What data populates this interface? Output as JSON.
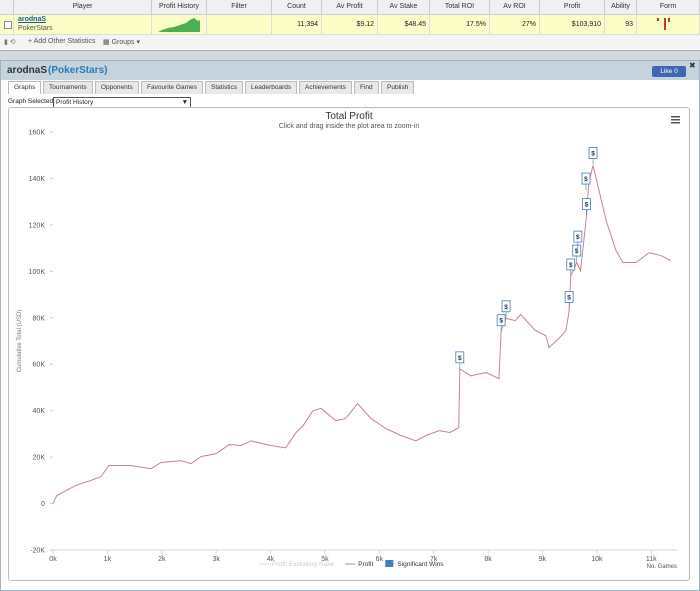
{
  "table": {
    "columns": [
      "Player",
      "Profit History",
      "Filter",
      "Count",
      "Av Profit",
      "Av Stake",
      "Total ROI",
      "Av ROI",
      "Profit",
      "Ability",
      "Form"
    ],
    "row": {
      "player": "arodnaS",
      "site": "PokerStars",
      "cells": [
        "11,394",
        "$9.12",
        "$48.45",
        "17.5%",
        "27%",
        "$103,910",
        "93"
      ]
    }
  },
  "toolbar": {
    "add_stats": "Add Other Statistics",
    "groups": "Groups"
  },
  "panel": {
    "name": "arodnaS",
    "site": "(PokerStars)",
    "like": "Like",
    "like_count": "0",
    "tabs": [
      "Graphs",
      "Tournaments",
      "Opponents",
      "Favourite Games",
      "Statistics",
      "Leaderboards",
      "Achievements",
      "Find",
      "Publish"
    ],
    "graph_selected_label": "Graph Selected:",
    "graph_selected_value": "Profit History"
  },
  "chart_data": {
    "type": "line",
    "title": "Total Profit",
    "subtitle": "Click and drag inside the plot area to zoom-in",
    "y_label": "Cumulative Total (USD)",
    "x_label": "No. Games",
    "xlim": [
      0,
      11400
    ],
    "ylim": [
      -20000,
      160000
    ],
    "xticks": [
      {
        "value": 0,
        "label": "0k"
      },
      {
        "value": 1000,
        "label": "1k"
      },
      {
        "value": 2000,
        "label": "2k"
      },
      {
        "value": 3000,
        "label": "3k"
      },
      {
        "value": 4000,
        "label": "4k"
      },
      {
        "value": 5000,
        "label": "5k"
      },
      {
        "value": 6000,
        "label": "6k"
      },
      {
        "value": 7000,
        "label": "7k"
      },
      {
        "value": 8000,
        "label": "8k"
      },
      {
        "value": 9000,
        "label": "9k"
      },
      {
        "value": 10000,
        "label": "10k"
      },
      {
        "value": 11000,
        "label": "11k"
      }
    ],
    "yticks": [
      {
        "value": -20000,
        "label": "-20K"
      },
      0,
      {
        "value": 20000,
        "label": "20K"
      },
      {
        "value": 40000,
        "label": "40K"
      },
      {
        "value": 60000,
        "label": "60K"
      },
      {
        "value": 80000,
        "label": "80K"
      },
      {
        "value": 100000,
        "label": "100K"
      },
      {
        "value": 120000,
        "label": "120K"
      },
      {
        "value": 140000,
        "label": "140K"
      },
      {
        "value": 160000,
        "label": "160K"
      }
    ],
    "grid": false,
    "inactive_legend": [
      "Profit Excluding Rake"
    ],
    "series": [
      {
        "name": "Profit",
        "type": "line",
        "color": "#c4858a",
        "x": [
          0,
          70,
          240,
          420,
          700,
          880,
          1030,
          1430,
          1800,
          1990,
          2350,
          2540,
          2720,
          3000,
          3240,
          3460,
          3640,
          4000,
          4280,
          4470,
          4600,
          4780,
          4930,
          5200,
          5380,
          5600,
          5850,
          6120,
          6400,
          6670,
          6860,
          7100,
          7300,
          7460,
          7480,
          7680,
          7960,
          8200,
          8240,
          8330,
          8500,
          8600,
          8870,
          9060,
          9120,
          9300,
          9430,
          9490,
          9520,
          9580,
          9630,
          9700,
          9750,
          9810,
          9850,
          9930,
          10040,
          10170,
          10350,
          10480,
          10720,
          10960,
          11180,
          11360
        ],
        "values": [
          0,
          3400,
          5600,
          7800,
          10000,
          11600,
          16400,
          16400,
          15000,
          17700,
          18500,
          17200,
          20200,
          21500,
          25400,
          25000,
          27000,
          25000,
          24000,
          30600,
          33600,
          40000,
          41000,
          35700,
          36600,
          43000,
          36600,
          32300,
          29300,
          27000,
          29300,
          31400,
          30600,
          32700,
          58000,
          55000,
          56400,
          53800,
          74500,
          79700,
          78800,
          81400,
          74500,
          72300,
          67200,
          71000,
          74500,
          83000,
          98200,
          101000,
          103800,
          100300,
          111000,
          124000,
          138000,
          145600,
          134800,
          121900,
          109000,
          103800,
          103800,
          108000,
          106800,
          104600
        ]
      },
      {
        "name": "Significant Wins",
        "type": "scatter",
        "color": "#3f7fc4",
        "marker_label": "$",
        "x": [
          7480,
          8240,
          8330,
          9490,
          9520,
          9630,
          9650,
          9810,
          9800,
          9930
        ],
        "values": [
          58000,
          74000,
          80000,
          84000,
          98000,
          104000,
          110000,
          124000,
          135000,
          146000
        ]
      }
    ]
  }
}
